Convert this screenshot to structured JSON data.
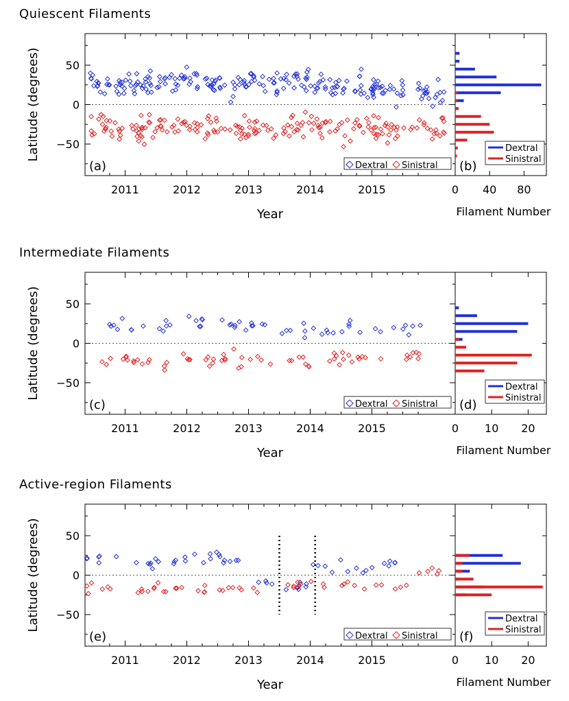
{
  "colors": {
    "dextral": "#1f2fd6",
    "sinistral": "#e02020",
    "zero_line": "#555555"
  },
  "figure": {
    "x_axis_label": "Year",
    "y_axis_label": "Latitude (degrees)",
    "hist_axis_label": "Filament Number",
    "year_ticks": [
      "2011",
      "2012",
      "2013",
      "2014",
      "2015"
    ],
    "lat_ticks": [
      "50",
      "0",
      "−50"
    ],
    "legend_dextral": "Dextral",
    "legend_sinistral": "Sinistral"
  },
  "chart_data": [
    {
      "type": "scatter",
      "panel": "(a)",
      "title": "Quiescent Filaments",
      "xlabel": "Year",
      "ylabel": "Latitude (degrees)",
      "xlim": [
        2010.35,
        2016.35
      ],
      "ylim": [
        -90,
        90
      ],
      "zero_line": true,
      "legend": "bottom-right",
      "n_dextral": 230,
      "n_sinistral": 200,
      "series": [
        {
          "name": "Dextral",
          "centers": [
            [
              2010.7,
              28
            ],
            [
              2011.15,
              30
            ],
            [
              2011.6,
              28
            ],
            [
              2012.15,
              30
            ],
            [
              2012.7,
              22
            ],
            [
              2013.2,
              28
            ],
            [
              2013.75,
              30
            ],
            [
              2014.3,
              22
            ],
            [
              2014.8,
              24
            ],
            [
              2015.3,
              20
            ],
            [
              2015.9,
              15
            ]
          ],
          "spread": 15
        },
        {
          "name": "Sinistral",
          "centers": [
            [
              2010.7,
              -30
            ],
            [
              2011.15,
              -32
            ],
            [
              2011.6,
              -28
            ],
            [
              2012.15,
              -28
            ],
            [
              2012.7,
              -30
            ],
            [
              2013.2,
              -28
            ],
            [
              2013.75,
              -30
            ],
            [
              2014.3,
              -30
            ],
            [
              2014.8,
              -28
            ],
            [
              2015.3,
              -30
            ],
            [
              2015.9,
              -28
            ]
          ],
          "spread": 14
        }
      ]
    },
    {
      "type": "bar",
      "panel": "(b)",
      "orientation": "horizontal",
      "xlabel": "Filament Number",
      "xlim": [
        0,
        106
      ],
      "xticks": [
        "0",
        "40",
        "80"
      ],
      "legend": "bottom-right",
      "series": [
        {
          "name": "Dextral",
          "bins": [
            [
              65,
              5
            ],
            [
              55,
              5
            ],
            [
              45,
              23
            ],
            [
              35,
              48
            ],
            [
              25,
              100
            ],
            [
              15,
              53
            ],
            [
              5,
              10
            ],
            [
              -5,
              4
            ]
          ]
        },
        {
          "name": "Sinistral",
          "bins": [
            [
              15,
              3
            ],
            [
              5,
              3
            ],
            [
              -5,
              4
            ],
            [
              -15,
              30
            ],
            [
              -25,
              40
            ],
            [
              -35,
              45
            ],
            [
              -45,
              14
            ],
            [
              -55,
              3
            ],
            [
              -65,
              2
            ]
          ]
        }
      ]
    },
    {
      "type": "scatter",
      "panel": "(c)",
      "title": "Intermediate Filaments",
      "xlabel": "Year",
      "ylabel": "Latitude (degrees)",
      "xlim": [
        2010.35,
        2016.35
      ],
      "ylim": [
        -90,
        90
      ],
      "zero_line": true,
      "legend": "bottom-right",
      "n_dextral": 55,
      "n_sinistral": 65,
      "series": [
        {
          "name": "Dextral",
          "centers": [
            [
              2010.9,
              24
            ],
            [
              2011.5,
              20
            ],
            [
              2012.05,
              28
            ],
            [
              2012.6,
              20
            ],
            [
              2013.1,
              22
            ],
            [
              2013.8,
              18
            ],
            [
              2014.3,
              16
            ],
            [
              2014.9,
              18
            ],
            [
              2015.6,
              22
            ]
          ],
          "spread": 9
        },
        {
          "name": "Sinistral",
          "centers": [
            [
              2010.9,
              -22
            ],
            [
              2011.4,
              -24
            ],
            [
              2012.2,
              -22
            ],
            [
              2012.6,
              -20
            ],
            [
              2013.1,
              -24
            ],
            [
              2013.8,
              -22
            ],
            [
              2014.3,
              -20
            ],
            [
              2014.9,
              -18
            ],
            [
              2015.6,
              -18
            ]
          ],
          "spread": 8
        }
      ]
    },
    {
      "type": "bar",
      "panel": "(d)",
      "orientation": "horizontal",
      "xlabel": "Filament Number",
      "xlim": [
        0,
        25
      ],
      "xticks": [
        "0",
        "10",
        "20"
      ],
      "legend": "bottom-right",
      "series": [
        {
          "name": "Dextral",
          "bins": [
            [
              45,
              1
            ],
            [
              35,
              6
            ],
            [
              25,
              20
            ],
            [
              15,
              17
            ],
            [
              5,
              2
            ]
          ]
        },
        {
          "name": "Sinistral",
          "bins": [
            [
              -5,
              3
            ],
            [
              -15,
              21
            ],
            [
              -25,
              17
            ],
            [
              -35,
              8
            ],
            [
              5,
              1
            ]
          ]
        }
      ]
    },
    {
      "type": "scatter",
      "panel": "(e)",
      "title": "Active-region Filaments",
      "xlabel": "Year",
      "ylabel": "Latitude (degrees)",
      "xlim": [
        2010.35,
        2016.35
      ],
      "ylim": [
        -90,
        90
      ],
      "zero_line": true,
      "legend": "bottom-right",
      "markers": [
        2013.5,
        2014.08
      ],
      "n_dextral": 55,
      "n_sinistral": 55,
      "series": [
        {
          "name": "Dextral",
          "centers": [
            [
              2010.6,
              22
            ],
            [
              2011.3,
              16
            ],
            [
              2011.8,
              18
            ],
            [
              2012.3,
              22
            ],
            [
              2012.8,
              20
            ],
            [
              2013.35,
              -14
            ],
            [
              2013.9,
              -12
            ],
            [
              2014.3,
              12
            ],
            [
              2014.8,
              10
            ],
            [
              2015.4,
              14
            ]
          ],
          "spread": 6
        },
        {
          "name": "Sinistral",
          "centers": [
            [
              2010.6,
              -16
            ],
            [
              2011.3,
              -18
            ],
            [
              2011.8,
              -18
            ],
            [
              2012.4,
              -18
            ],
            [
              2012.9,
              -16
            ],
            [
              2013.6,
              -12
            ],
            [
              2014.0,
              -14
            ],
            [
              2014.7,
              -12
            ],
            [
              2015.3,
              -14
            ],
            [
              2015.9,
              5
            ]
          ],
          "spread": 6
        }
      ]
    },
    {
      "type": "bar",
      "panel": "(f)",
      "orientation": "horizontal",
      "xlabel": "Filament Number",
      "xlim": [
        0,
        25
      ],
      "xticks": [
        "0",
        "10",
        "20"
      ],
      "legend": "bottom-right",
      "series": [
        {
          "name": "Dextral",
          "bins": [
            [
              25,
              13
            ],
            [
              15,
              18
            ],
            [
              5,
              4
            ],
            [
              -5,
              1
            ],
            [
              -15,
              8
            ],
            [
              -25,
              3
            ]
          ]
        },
        {
          "name": "Sinistral",
          "bins": [
            [
              25,
              4
            ],
            [
              15,
              2
            ],
            [
              5,
              2
            ],
            [
              -5,
              5
            ],
            [
              -15,
              24
            ],
            [
              -25,
              10
            ]
          ]
        }
      ]
    }
  ]
}
